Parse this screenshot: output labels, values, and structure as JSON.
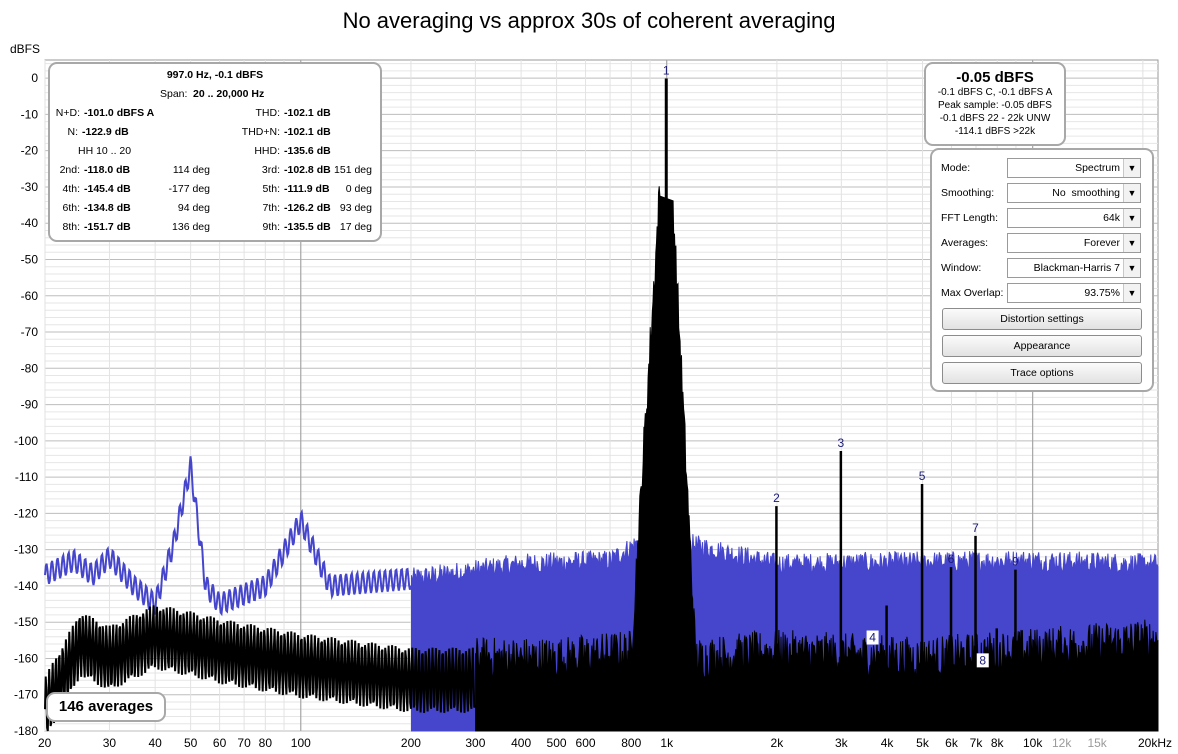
{
  "title": "No averaging vs approx 30s of coherent averaging",
  "axes": {
    "y_unit": "dBFS",
    "y_ticks": [
      "0",
      "-10",
      "-20",
      "-30",
      "-40",
      "-50",
      "-60",
      "-70",
      "-80",
      "-90",
      "-100",
      "-110",
      "-120",
      "-130",
      "-140",
      "-150",
      "-160",
      "-170",
      "-180"
    ],
    "x_ticks": [
      {
        "v": 20,
        "label": "20",
        "grey": false
      },
      {
        "v": 30,
        "label": "30",
        "grey": false
      },
      {
        "v": 40,
        "label": "40",
        "grey": false
      },
      {
        "v": 50,
        "label": "50",
        "grey": false
      },
      {
        "v": 60,
        "label": "60",
        "grey": false
      },
      {
        "v": 70,
        "label": "70",
        "grey": false
      },
      {
        "v": 80,
        "label": "80",
        "grey": false
      },
      {
        "v": 100,
        "label": "100",
        "grey": false
      },
      {
        "v": 200,
        "label": "200",
        "grey": false
      },
      {
        "v": 300,
        "label": "300",
        "grey": false
      },
      {
        "v": 400,
        "label": "400",
        "grey": false
      },
      {
        "v": 500,
        "label": "500",
        "grey": false
      },
      {
        "v": 600,
        "label": "600",
        "grey": false
      },
      {
        "v": 800,
        "label": "800",
        "grey": false
      },
      {
        "v": 1000,
        "label": "1k",
        "grey": false
      },
      {
        "v": 2000,
        "label": "2k",
        "grey": false
      },
      {
        "v": 3000,
        "label": "3k",
        "grey": false
      },
      {
        "v": 4000,
        "label": "4k",
        "grey": false
      },
      {
        "v": 5000,
        "label": "5k",
        "grey": false
      },
      {
        "v": 6000,
        "label": "6k",
        "grey": false
      },
      {
        "v": 7000,
        "label": "7k",
        "grey": false
      },
      {
        "v": 8000,
        "label": "8k",
        "grey": false
      },
      {
        "v": 10000,
        "label": "10k",
        "grey": false
      },
      {
        "v": 12000,
        "label": "12k",
        "grey": true
      },
      {
        "v": 15000,
        "label": "15k",
        "grey": true
      },
      {
        "v": 20000,
        "label": "20kHz",
        "grey": false
      }
    ]
  },
  "chart_data": {
    "type": "line",
    "title": "No averaging vs approx 30s of coherent averaging",
    "ylabel": "dBFS",
    "x_scale": "log",
    "xlim": [
      20,
      22000
    ],
    "ylim": [
      -180,
      5
    ],
    "grid": true,
    "colors": {
      "no_averaging": "#4646cc",
      "averaged": "#000000"
    },
    "series": [
      {
        "color_key": "no_averaging",
        "floor_low_freq_dB": -140,
        "floor_high_freq_dB": -139,
        "envelope": [
          [
            20,
            -137
          ],
          [
            24,
            -133
          ],
          [
            27,
            -137
          ],
          [
            30,
            -132
          ],
          [
            35,
            -140
          ],
          [
            40,
            -145
          ],
          [
            45,
            -128
          ],
          [
            50,
            -107
          ],
          [
            55,
            -140
          ],
          [
            60,
            -145
          ],
          [
            80,
            -140
          ],
          [
            100,
            -122
          ],
          [
            120,
            -140
          ],
          [
            200,
            -138
          ],
          [
            400,
            -134
          ],
          [
            700,
            -133
          ],
          [
            900,
            -126
          ],
          [
            1000,
            0
          ],
          [
            1100,
            -128
          ],
          [
            2000,
            -134
          ],
          [
            10000,
            -133
          ],
          [
            20000,
            -134
          ]
        ]
      },
      {
        "color_key": "averaged",
        "floor_low_freq_dB": -162,
        "floor_high_freq_dB": -158,
        "envelope": [
          [
            20,
            -168
          ],
          [
            25,
            -150
          ],
          [
            30,
            -154
          ],
          [
            40,
            -148
          ],
          [
            50,
            -150
          ],
          [
            60,
            -152
          ],
          [
            100,
            -156
          ],
          [
            200,
            -160
          ],
          [
            500,
            -160
          ],
          [
            800,
            -158
          ],
          [
            1000,
            0
          ],
          [
            1200,
            -160
          ],
          [
            2000,
            -158
          ],
          [
            5000,
            -160
          ],
          [
            20000,
            -155
          ]
        ]
      }
    ],
    "harmonics": [
      {
        "n": "1",
        "f": 997,
        "dB": -0.1
      },
      {
        "n": "2",
        "f": 1994,
        "dB": -118.0
      },
      {
        "n": "3",
        "f": 2991,
        "dB": -102.8
      },
      {
        "n": "4",
        "f": 3988,
        "dB": -145.4
      },
      {
        "n": "5",
        "f": 4985,
        "dB": -111.9
      },
      {
        "n": "6",
        "f": 5982,
        "dB": -134.8
      },
      {
        "n": "7",
        "f": 6979,
        "dB": -126.2
      },
      {
        "n": "8",
        "f": 7976,
        "dB": -151.7
      },
      {
        "n": "9",
        "f": 8973,
        "dB": -135.5
      }
    ],
    "extra_spurs": [
      {
        "f": 11960,
        "dB": -156
      }
    ]
  },
  "stats": {
    "fundamental": "997.0 Hz, -0.1 dBFS",
    "span_label": "Span:",
    "span_value": "20 .. 20,000 Hz",
    "nd_label": "N+D:",
    "nd_value": "-101.0 dBFS A",
    "thd_label": "THD:",
    "thd_value": "-102.1 dB",
    "n_label": "N:",
    "n_value": "-122.9 dB",
    "thdn_label": "THD+N:",
    "thdn_value": "-102.1 dB",
    "hh_label": "HH 10 .. 20",
    "hhd_label": "HHD:",
    "hhd_value": "-135.6 dB",
    "harmonic_rows": [
      {
        "l1": "2nd:",
        "v1": "-118.0 dB",
        "p1": "114 deg",
        "l2": "3rd:",
        "v2": "-102.8 dB",
        "p2": "151 deg"
      },
      {
        "l1": "4th:",
        "v1": "-145.4 dB",
        "p1": "-177 deg",
        "l2": "5th:",
        "v2": "-111.9 dB",
        "p2": "0 deg"
      },
      {
        "l1": "6th:",
        "v1": "-134.8 dB",
        "p1": "94 deg",
        "l2": "7th:",
        "v2": "-126.2 dB",
        "p2": "93 deg"
      },
      {
        "l1": "8th:",
        "v1": "-151.7 dB",
        "p1": "136 deg",
        "l2": "9th:",
        "v2": "-135.5 dB",
        "p2": "17 deg"
      }
    ]
  },
  "level": {
    "main": "-0.05 dBFS",
    "line1": "-0.1 dBFS C, -0.1 dBFS A",
    "line2": "Peak sample: -0.05 dBFS",
    "line3": "-0.1 dBFS 22 - 22k UNW",
    "line4": "-114.1 dBFS >22k"
  },
  "settings": {
    "mode": {
      "label": "Mode:",
      "value": "Spectrum"
    },
    "smoothing": {
      "label": "Smoothing:",
      "value": "No  smoothing"
    },
    "fft_length": {
      "label": "FFT Length:",
      "value": "64k"
    },
    "averages": {
      "label": "Averages:",
      "value": "Forever"
    },
    "window": {
      "label": "Window:",
      "value": "Blackman-Harris 7"
    },
    "max_overlap": {
      "label": "Max Overlap:",
      "value": "93.75%"
    },
    "distortion_button": "Distortion settings",
    "appearance_button": "Appearance",
    "trace_button": "Trace options"
  },
  "averages_badge": "146 averages"
}
